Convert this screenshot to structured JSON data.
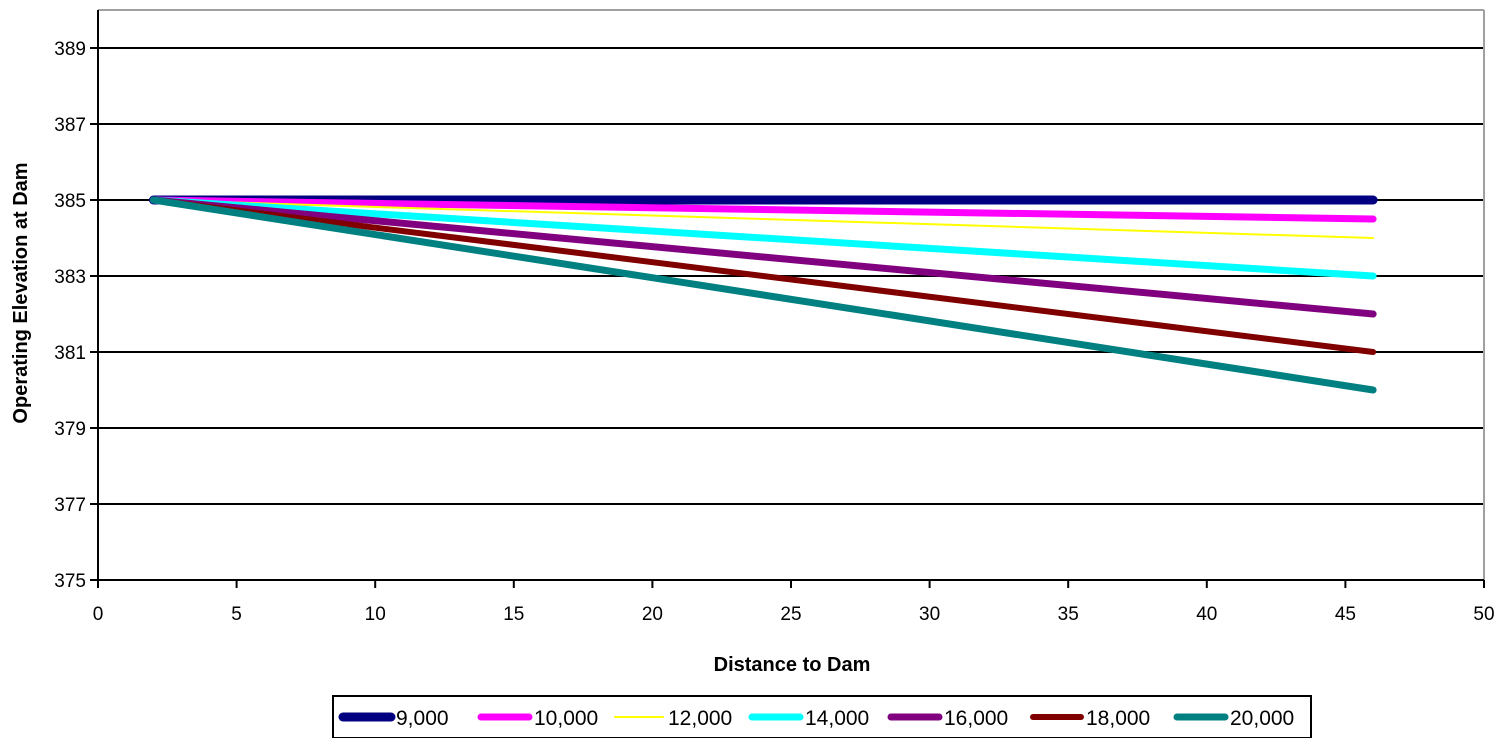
{
  "chart_data": {
    "type": "line",
    "title": "",
    "xlabel": "Distance to Dam",
    "ylabel": "Operating Elevation at Dam",
    "xlim": [
      0,
      50
    ],
    "ylim": [
      375,
      390
    ],
    "xticks": [
      "0",
      "5",
      "10",
      "15",
      "20",
      "25",
      "30",
      "35",
      "40",
      "45",
      "50"
    ],
    "yticks": [
      "375",
      "377",
      "379",
      "381",
      "383",
      "385",
      "387",
      "389"
    ],
    "grid": "horizontal",
    "legend_position": "bottom",
    "x": [
      2,
      46
    ],
    "series": [
      {
        "name": "9,000",
        "values": [
          385,
          385
        ],
        "color": "#000080",
        "width": 9
      },
      {
        "name": "10,000",
        "values": [
          385,
          384.5
        ],
        "color": "#ff00ff",
        "width": 7
      },
      {
        "name": "12,000",
        "values": [
          385,
          384
        ],
        "color": "#ffff00",
        "width": 2
      },
      {
        "name": "14,000",
        "values": [
          385,
          383
        ],
        "color": "#00ffff",
        "width": 7
      },
      {
        "name": "16,000",
        "values": [
          385,
          382
        ],
        "color": "#800080",
        "width": 7
      },
      {
        "name": "18,000",
        "values": [
          385,
          381
        ],
        "color": "#800000",
        "width": 6
      },
      {
        "name": "20,000",
        "values": [
          385,
          380
        ],
        "color": "#008080",
        "width": 7
      }
    ]
  }
}
